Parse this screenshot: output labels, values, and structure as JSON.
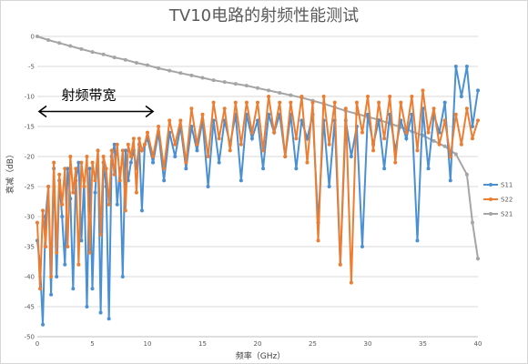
{
  "chart_data": {
    "type": "line",
    "title": "TV10电路的射频性能测试",
    "xlabel": "频率（GHz）",
    "ylabel": "衰减（dB）",
    "xlim": [
      0,
      40
    ],
    "ylim": [
      -50,
      0
    ],
    "xticks": [
      "0",
      "5",
      "10",
      "15",
      "20",
      "25",
      "30",
      "35",
      "40"
    ],
    "yticks": [
      "0",
      "-5",
      "-10",
      "-15",
      "-20",
      "-25",
      "-30",
      "-35",
      "-40",
      "-45",
      "-50"
    ],
    "grid": "horizontal",
    "legend_position": "right",
    "annotation": {
      "text": "射频带宽",
      "x_range": [
        0,
        10.5
      ],
      "y": -12.5
    },
    "colors": {
      "S11": "#4a90d2",
      "S22": "#ed7d31",
      "S21": "#a5a5a5"
    },
    "series": [
      {
        "name": "S11",
        "x": [
          0,
          0.25,
          0.5,
          0.75,
          1,
          1.25,
          1.5,
          1.75,
          2,
          2.25,
          2.5,
          2.75,
          3,
          3.25,
          3.5,
          3.75,
          4,
          4.25,
          4.5,
          4.75,
          5,
          5.25,
          5.5,
          5.75,
          6,
          6.25,
          6.5,
          6.75,
          7,
          7.25,
          7.5,
          7.75,
          8,
          8.25,
          8.5,
          8.75,
          9,
          9.25,
          9.5,
          9.75,
          10,
          10.5,
          11,
          11.5,
          12,
          12.5,
          13,
          13.5,
          14,
          14.5,
          15,
          15.5,
          16,
          16.5,
          17,
          17.5,
          18,
          18.5,
          19,
          19.5,
          20,
          20.5,
          21,
          21.5,
          22,
          22.5,
          23,
          23.5,
          24,
          24.5,
          25,
          25.5,
          26,
          26.5,
          27,
          27.5,
          28,
          28.5,
          29,
          29.5,
          30,
          30.5,
          31,
          31.5,
          32,
          32.5,
          33,
          33.5,
          34,
          34.5,
          35,
          35.5,
          36,
          36.5,
          37,
          37.5,
          38,
          38.5,
          39,
          39.5,
          40
        ],
        "y": [
          -34,
          -38,
          -48,
          -30,
          -25,
          -43,
          -22,
          -40,
          -24,
          -30,
          -38,
          -22,
          -27,
          -42,
          -24,
          -21,
          -34,
          -24,
          -45,
          -22,
          -42,
          -26,
          -19,
          -46,
          -21,
          -25,
          -47,
          -20,
          -18,
          -28,
          -22,
          -40,
          -19,
          -24,
          -21,
          -19,
          -22,
          -18,
          -29,
          -18,
          -17,
          -21,
          -16,
          -24,
          -16,
          -20,
          -15,
          -22,
          -15,
          -19,
          -14,
          -25,
          -14,
          -21,
          -14,
          -18,
          -13,
          -24,
          -13,
          -17,
          -14,
          -22,
          -13,
          -16,
          -13,
          -20,
          -13,
          -22,
          -14,
          -17,
          -13,
          -31,
          -14,
          -25,
          -14,
          -38,
          -14,
          -20,
          -15,
          -35,
          -13,
          -18,
          -14,
          -22,
          -13,
          -19,
          -14,
          -17,
          -13,
          -34,
          -12,
          -22,
          -13,
          -16,
          -11,
          -24,
          -5,
          -10,
          -5,
          -15,
          -9
        ]
      },
      {
        "name": "S22",
        "x": [
          0,
          0.25,
          0.5,
          0.75,
          1,
          1.25,
          1.5,
          1.75,
          2,
          2.25,
          2.5,
          2.75,
          3,
          3.25,
          3.5,
          3.75,
          4,
          4.25,
          4.5,
          4.75,
          5,
          5.25,
          5.5,
          5.75,
          6,
          6.25,
          6.5,
          6.75,
          7,
          7.25,
          7.5,
          7.75,
          8,
          8.25,
          8.5,
          8.75,
          9,
          9.25,
          9.5,
          9.75,
          10,
          10.5,
          11,
          11.5,
          12,
          12.5,
          13,
          13.5,
          14,
          14.5,
          15,
          15.5,
          16,
          16.5,
          17,
          17.5,
          18,
          18.5,
          19,
          19.5,
          20,
          20.5,
          21,
          21.5,
          22,
          22.5,
          23,
          23.5,
          24,
          24.5,
          25,
          25.5,
          26,
          26.5,
          27,
          27.5,
          28,
          28.5,
          29,
          29.5,
          30,
          30.5,
          31,
          31.5,
          32,
          32.5,
          33,
          33.5,
          34,
          34.5,
          35,
          35.5,
          36,
          36.5,
          37,
          37.5,
          38,
          38.5,
          39,
          39.5,
          40
        ],
        "y": [
          -31,
          -42,
          -29,
          -35,
          -25,
          -40,
          -21,
          -36,
          -23,
          -28,
          -22,
          -35,
          -20,
          -26,
          -22,
          -38,
          -21,
          -25,
          -20,
          -36,
          -21,
          -24,
          -19,
          -33,
          -20,
          -22,
          -28,
          -19,
          -23,
          -18,
          -24,
          -19,
          -29,
          -18,
          -20,
          -17,
          -26,
          -17,
          -19,
          -18,
          -16,
          -20,
          -15,
          -22,
          -14,
          -18,
          -14,
          -21,
          -12,
          -18,
          -13,
          -20,
          -11,
          -17,
          -12,
          -19,
          -11,
          -18,
          -11,
          -16,
          -11,
          -19,
          -10,
          -16,
          -11,
          -20,
          -11,
          -17,
          -10,
          -21,
          -11,
          -34,
          -10,
          -18,
          -11,
          -38,
          -12,
          -41,
          -11,
          -16,
          -10,
          -19,
          -11,
          -17,
          -10,
          -21,
          -11,
          -16,
          -10,
          -19,
          -9,
          -16,
          -12,
          -18,
          -14,
          -20,
          -13,
          -18,
          -12,
          -17,
          -14
        ]
      },
      {
        "name": "S21",
        "x": [
          0,
          1,
          2,
          3,
          4,
          5,
          6,
          7,
          8,
          9,
          10,
          11,
          12,
          13,
          14,
          15,
          16,
          17,
          18,
          19,
          20,
          21,
          22,
          23,
          24,
          25,
          26,
          27,
          28,
          29,
          30,
          31,
          32,
          33,
          34,
          35,
          36,
          37,
          38,
          39,
          39.5,
          40
        ],
        "y": [
          0,
          -0.6,
          -1.1,
          -1.6,
          -2.1,
          -2.6,
          -3,
          -3.5,
          -3.9,
          -4.4,
          -4.8,
          -5.3,
          -5.7,
          -6.1,
          -6.5,
          -6.9,
          -7.3,
          -7.6,
          -7.9,
          -8.2,
          -8.6,
          -9,
          -9.4,
          -9.8,
          -10.2,
          -10.7,
          -11.2,
          -11.8,
          -12.4,
          -12.9,
          -13.4,
          -13.9,
          -14.5,
          -15.1,
          -15.8,
          -16.5,
          -17.4,
          -18.3,
          -19.6,
          -23,
          -31,
          -37
        ]
      }
    ]
  }
}
